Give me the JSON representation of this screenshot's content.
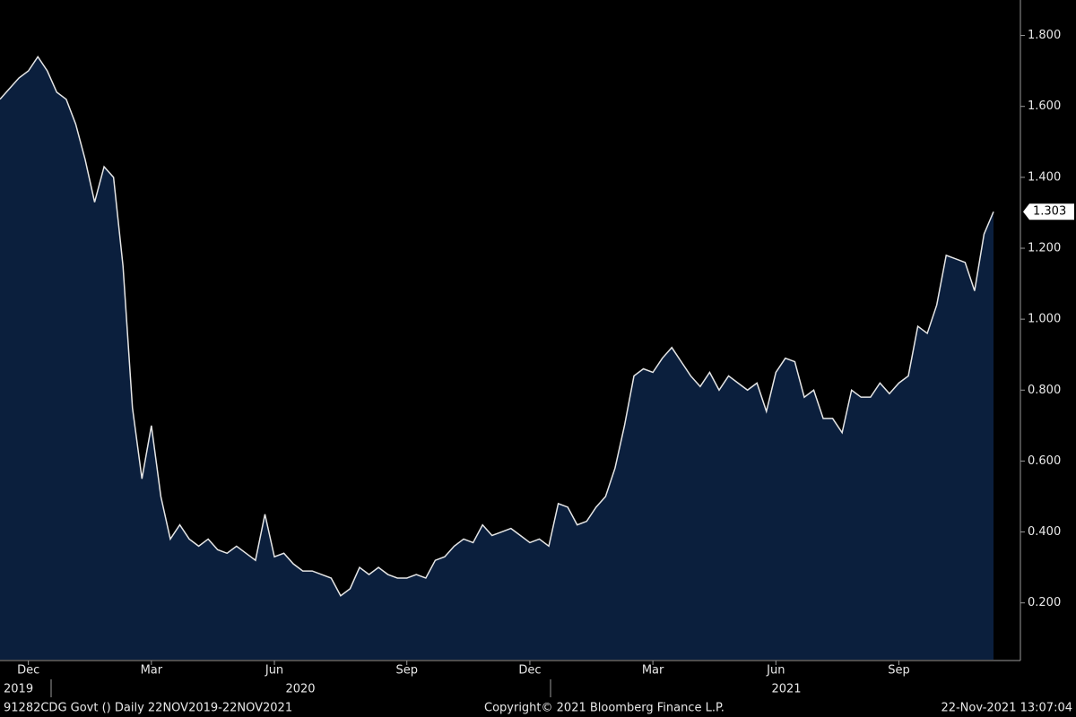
{
  "chart_data": {
    "type": "area",
    "categories": [
      null,
      null,
      null,
      "Dec",
      null,
      null,
      null,
      null,
      null,
      null,
      null,
      null,
      null,
      null,
      null,
      null,
      "Mar",
      null,
      null,
      null,
      null,
      null,
      null,
      null,
      null,
      null,
      null,
      null,
      null,
      "Jun",
      null,
      null,
      null,
      null,
      null,
      null,
      null,
      null,
      null,
      null,
      null,
      null,
      null,
      "Sep",
      null,
      null,
      null,
      null,
      null,
      null,
      null,
      null,
      null,
      null,
      null,
      null,
      "Dec",
      null,
      null,
      null,
      null,
      null,
      null,
      null,
      null,
      null,
      null,
      null,
      null,
      "Mar",
      null,
      null,
      null,
      null,
      null,
      null,
      null,
      null,
      null,
      null,
      null,
      null,
      "Jun",
      null,
      null,
      null,
      null,
      null,
      null,
      null,
      null,
      null,
      null,
      null,
      null,
      "Sep",
      null,
      null,
      null,
      null,
      null,
      null,
      null,
      null,
      null,
      null
    ],
    "values": [
      1.62,
      1.65,
      1.68,
      1.7,
      1.74,
      1.7,
      1.64,
      1.62,
      1.55,
      1.45,
      1.33,
      1.43,
      1.4,
      1.15,
      0.75,
      0.55,
      0.7,
      0.5,
      0.38,
      0.42,
      0.38,
      0.36,
      0.38,
      0.35,
      0.34,
      0.36,
      0.34,
      0.32,
      0.45,
      0.33,
      0.34,
      0.31,
      0.29,
      0.29,
      0.28,
      0.27,
      0.22,
      0.24,
      0.3,
      0.28,
      0.3,
      0.28,
      0.27,
      0.27,
      0.28,
      0.27,
      0.32,
      0.33,
      0.36,
      0.38,
      0.37,
      0.42,
      0.39,
      0.4,
      0.41,
      0.39,
      0.37,
      0.38,
      0.36,
      0.48,
      0.47,
      0.42,
      0.43,
      0.47,
      0.5,
      0.58,
      0.7,
      0.84,
      0.86,
      0.85,
      0.89,
      0.92,
      0.88,
      0.84,
      0.81,
      0.85,
      0.8,
      0.84,
      0.82,
      0.8,
      0.82,
      0.74,
      0.85,
      0.89,
      0.88,
      0.78,
      0.8,
      0.72,
      0.72,
      0.68,
      0.8,
      0.78,
      0.78,
      0.82,
      0.79,
      0.82,
      0.84,
      0.98,
      0.96,
      1.04,
      1.18,
      1.17,
      1.16,
      1.08,
      1.24,
      1.303
    ],
    "year_labels": [
      "2019",
      "2020",
      "2021"
    ],
    "color": "#0b1f3d",
    "line_color": "#e6e6e6",
    "ylim": [
      0.04,
      1.9
    ],
    "yticks": [
      {
        "value": 0.2,
        "label": "0.200"
      },
      {
        "value": 0.4,
        "label": "0.400"
      },
      {
        "value": 0.6,
        "label": "0.600"
      },
      {
        "value": 0.8,
        "label": "0.800"
      },
      {
        "value": 1.0,
        "label": "1.000"
      },
      {
        "value": 1.2,
        "label": "1.200"
      },
      {
        "value": 1.4,
        "label": "1.400"
      },
      {
        "value": 1.6,
        "label": "1.600"
      },
      {
        "value": 1.8,
        "label": "1.800"
      }
    ]
  },
  "footer": {
    "security": "91282CDG Govt ()  Daily 22NOV2019-22NOV2021",
    "copyright": "Copyright© 2021 Bloomberg Finance L.P.",
    "timestamp": "22-Nov-2021 13:07:04"
  }
}
